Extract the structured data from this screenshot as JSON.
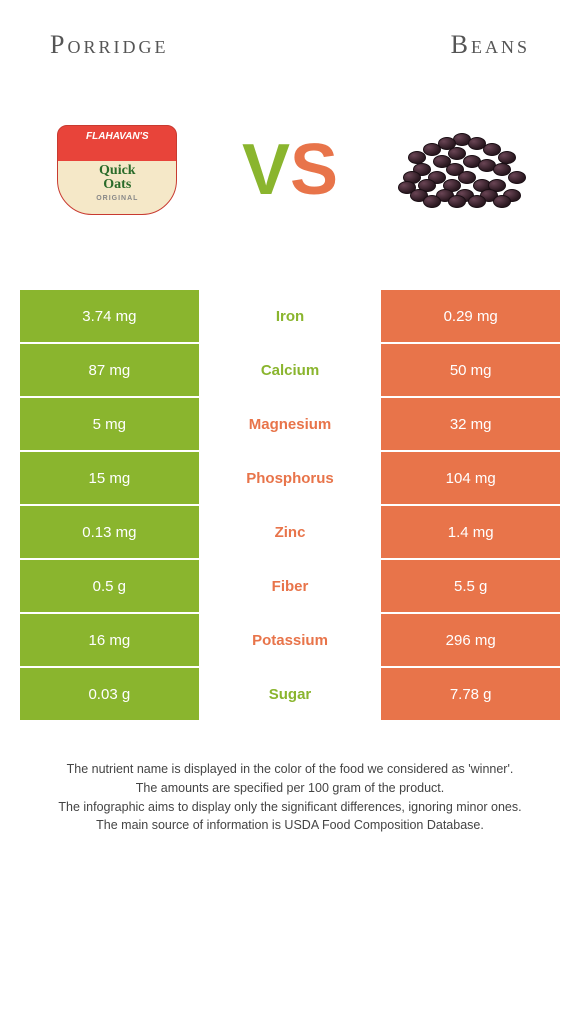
{
  "titles": {
    "left": "Porridge",
    "right": "Beans"
  },
  "vs": {
    "v": "V",
    "s": "S"
  },
  "oats": {
    "brand": "FLAHAVAN'S",
    "main": "Quick\nOats",
    "sub": "ORIGINAL"
  },
  "colors": {
    "left_bg": "#8ab52e",
    "right_bg": "#e8744a",
    "left_text": "#8ab52e",
    "right_text": "#e8744a"
  },
  "rows": [
    {
      "left": "3.74 mg",
      "label": "Iron",
      "right": "0.29 mg",
      "winner": "left"
    },
    {
      "left": "87 mg",
      "label": "Calcium",
      "right": "50 mg",
      "winner": "left"
    },
    {
      "left": "5 mg",
      "label": "Magnesium",
      "right": "32 mg",
      "winner": "right"
    },
    {
      "left": "15 mg",
      "label": "Phosphorus",
      "right": "104 mg",
      "winner": "right"
    },
    {
      "left": "0.13 mg",
      "label": "Zinc",
      "right": "1.4 mg",
      "winner": "right"
    },
    {
      "left": "0.5 g",
      "label": "Fiber",
      "right": "5.5 g",
      "winner": "right"
    },
    {
      "left": "16 mg",
      "label": "Potassium",
      "right": "296 mg",
      "winner": "right"
    },
    {
      "left": "0.03 g",
      "label": "Sugar",
      "right": "7.78 g",
      "winner": "left"
    }
  ],
  "footnotes": [
    "The nutrient name is displayed in the color of the food we considered as 'winner'.",
    "The amounts are specified per 100 gram of the product.",
    "The infographic aims to display only the significant differences, ignoring minor ones.",
    "The main source of information is USDA Food Composition Database."
  ]
}
